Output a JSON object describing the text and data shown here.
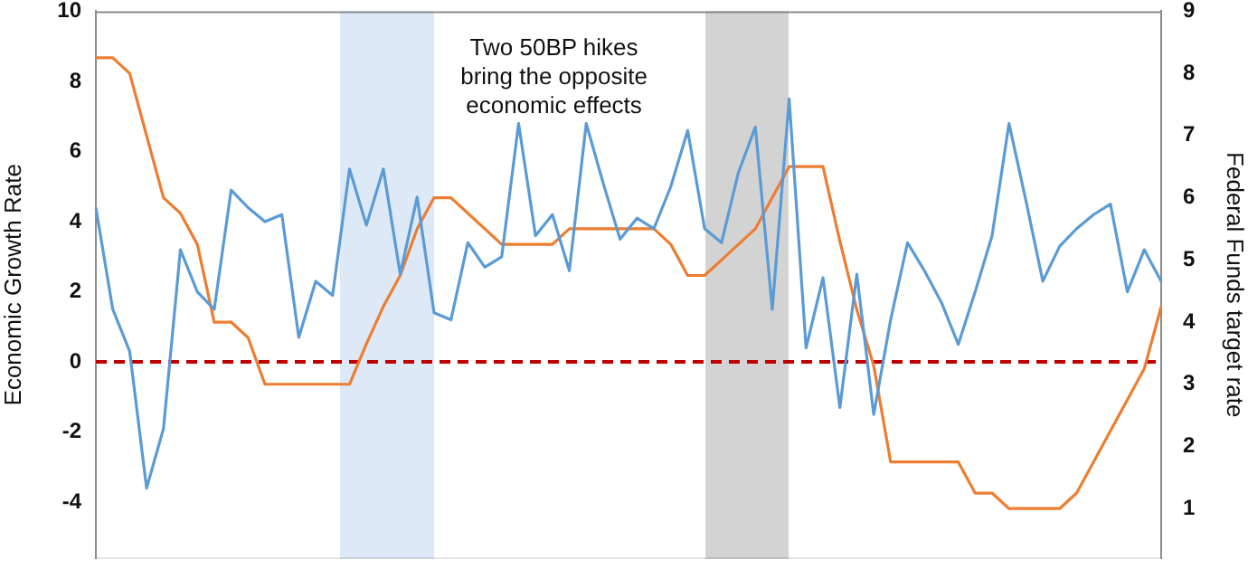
{
  "chart_data": {
    "type": "line",
    "ylabel": "Economic Growth Rate",
    "y2label": "Federal Funds target rate",
    "annotations": [
      "Two 50BP hikes bring the opposite economic effects"
    ],
    "categories": [
      null,
      null,
      null,
      null,
      null,
      null,
      null,
      null,
      null,
      null,
      null,
      null,
      null,
      null,
      null,
      null,
      null,
      null,
      null,
      null,
      null,
      null,
      null,
      null,
      null,
      null,
      null,
      null,
      null,
      null,
      null,
      null,
      null,
      null,
      null,
      null,
      null,
      null,
      null,
      null,
      null,
      null,
      null,
      null,
      null,
      null,
      null,
      null,
      null,
      null,
      null,
      null,
      null,
      null,
      null,
      null,
      null,
      null,
      null,
      null,
      null,
      null,
      null,
      null
    ],
    "ylim": [
      -5.6,
      10
    ],
    "yticks": [
      -4,
      -2,
      0,
      2,
      4,
      6,
      8,
      10
    ],
    "y2lim": [
      0.2,
      9
    ],
    "y2ticks": [
      1,
      2,
      3,
      4,
      5,
      6,
      7,
      8,
      9
    ],
    "grid": false,
    "legend": false,
    "marker": "none",
    "line_style": "solid",
    "series": [
      {
        "color": "#5b9bd5",
        "values": [
          4.4,
          1.5,
          0.3,
          -3.6,
          -1.9,
          3.2,
          2.0,
          1.5,
          4.9,
          4.4,
          4.0,
          4.2,
          0.7,
          2.3,
          1.9,
          5.5,
          3.9,
          5.5,
          2.5,
          4.7,
          1.4,
          1.2,
          3.4,
          2.7,
          3.0,
          6.8,
          3.6,
          4.2,
          2.6,
          6.8,
          5.1,
          3.5,
          4.1,
          3.8,
          5.0,
          6.6,
          3.8,
          3.4,
          5.4,
          6.7,
          1.5,
          7.5,
          0.4,
          2.4,
          -1.3,
          2.5,
          -1.5,
          1.2,
          3.4,
          2.6,
          1.7,
          0.5,
          2.0,
          3.6,
          6.8,
          4.6,
          2.3,
          3.3,
          3.8,
          4.2,
          4.5,
          2.0,
          3.2,
          2.3
        ]
      },
      {
        "color": "#ed7d31",
        "axis": "y2",
        "values": [
          8.25,
          8.25,
          8.0,
          7.0,
          6.0,
          5.75,
          5.25,
          4.0,
          4.0,
          3.75,
          3.0,
          3.0,
          3.0,
          3.0,
          3.0,
          3.0,
          3.65,
          4.25,
          4.75,
          5.5,
          6.0,
          6.0,
          5.75,
          5.5,
          5.25,
          5.25,
          5.25,
          5.25,
          5.5,
          5.5,
          5.5,
          5.5,
          5.5,
          5.5,
          5.25,
          4.75,
          4.75,
          5.0,
          5.25,
          5.5,
          6.0,
          6.5,
          6.5,
          6.5,
          5.3,
          4.2,
          3.3,
          1.75,
          1.75,
          1.75,
          1.75,
          1.75,
          1.25,
          1.25,
          1.0,
          1.0,
          1.0,
          1.0,
          1.25,
          1.75,
          2.25,
          2.75,
          3.25,
          4.25
        ]
      }
    ],
    "ref_lines": [
      {
        "axis": "y",
        "value": 0,
        "color": "#c00000",
        "line_style": "dashed"
      }
    ]
  }
}
